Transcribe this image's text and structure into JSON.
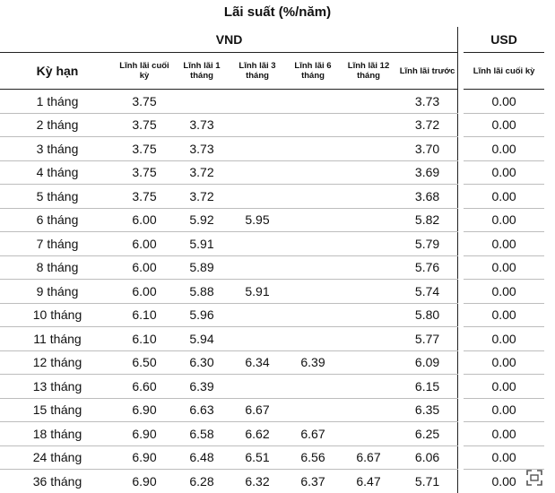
{
  "title": "Lãi suất (%/năm)",
  "groups": {
    "vnd": "VND",
    "usd": "USD"
  },
  "columns": {
    "term": "Kỳ hạn",
    "vnd": [
      "Lĩnh lãi cuối kỳ",
      "Lĩnh lãi 1 tháng",
      "Lĩnh lãi 3 tháng",
      "Lĩnh lãi 6 tháng",
      "Lĩnh lãi 12 tháng",
      "Lĩnh lãi trước"
    ],
    "usd": [
      "Lĩnh lãi cuối kỳ"
    ]
  },
  "rows": [
    {
      "term": "1 tháng",
      "vnd": [
        "3.75",
        "",
        "",
        "",
        "",
        "3.73"
      ],
      "usd": "0.00"
    },
    {
      "term": "2 tháng",
      "vnd": [
        "3.75",
        "3.73",
        "",
        "",
        "",
        "3.72"
      ],
      "usd": "0.00"
    },
    {
      "term": "3 tháng",
      "vnd": [
        "3.75",
        "3.73",
        "",
        "",
        "",
        "3.70"
      ],
      "usd": "0.00"
    },
    {
      "term": "4 tháng",
      "vnd": [
        "3.75",
        "3.72",
        "",
        "",
        "",
        "3.69"
      ],
      "usd": "0.00"
    },
    {
      "term": "5 tháng",
      "vnd": [
        "3.75",
        "3.72",
        "",
        "",
        "",
        "3.68"
      ],
      "usd": "0.00"
    },
    {
      "term": "6 tháng",
      "vnd": [
        "6.00",
        "5.92",
        "5.95",
        "",
        "",
        "5.82"
      ],
      "usd": "0.00"
    },
    {
      "term": "7 tháng",
      "vnd": [
        "6.00",
        "5.91",
        "",
        "",
        "",
        "5.79"
      ],
      "usd": "0.00"
    },
    {
      "term": "8 tháng",
      "vnd": [
        "6.00",
        "5.89",
        "",
        "",
        "",
        "5.76"
      ],
      "usd": "0.00"
    },
    {
      "term": "9 tháng",
      "vnd": [
        "6.00",
        "5.88",
        "5.91",
        "",
        "",
        "5.74"
      ],
      "usd": "0.00"
    },
    {
      "term": "10 tháng",
      "vnd": [
        "6.10",
        "5.96",
        "",
        "",
        "",
        "5.80"
      ],
      "usd": "0.00"
    },
    {
      "term": "11 tháng",
      "vnd": [
        "6.10",
        "5.94",
        "",
        "",
        "",
        "5.77"
      ],
      "usd": "0.00"
    },
    {
      "term": "12 tháng",
      "vnd": [
        "6.50",
        "6.30",
        "6.34",
        "6.39",
        "",
        "6.09"
      ],
      "usd": "0.00"
    },
    {
      "term": "13 tháng",
      "vnd": [
        "6.60",
        "6.39",
        "",
        "",
        "",
        "6.15"
      ],
      "usd": "0.00"
    },
    {
      "term": "15 tháng",
      "vnd": [
        "6.90",
        "6.63",
        "6.67",
        "",
        "",
        "6.35"
      ],
      "usd": "0.00"
    },
    {
      "term": "18 tháng",
      "vnd": [
        "6.90",
        "6.58",
        "6.62",
        "6.67",
        "",
        "6.25"
      ],
      "usd": "0.00"
    },
    {
      "term": "24 tháng",
      "vnd": [
        "6.90",
        "6.48",
        "6.51",
        "6.56",
        "6.67",
        "6.06"
      ],
      "usd": "0.00"
    },
    {
      "term": "36 tháng",
      "vnd": [
        "6.90",
        "6.28",
        "6.32",
        "6.37",
        "6.47",
        "5.71"
      ],
      "usd": "0.00"
    }
  ],
  "icons": {
    "corner": "image-expand-icon"
  }
}
